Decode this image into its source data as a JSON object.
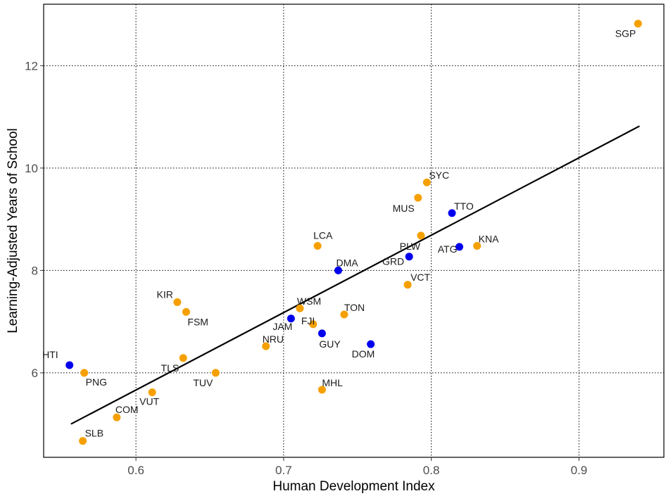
{
  "chart_data": {
    "type": "scatter",
    "xlabel": "Human Development Index",
    "ylabel": "Learning-Adjusted Years of School",
    "xlim": [
      0.5375,
      0.9575
    ],
    "ylim": [
      4.35,
      13.2
    ],
    "x_ticks": [
      0.6,
      0.7,
      0.8,
      0.9
    ],
    "x_tick_labels": [
      "0.6",
      "0.7",
      "0.8",
      "0.9"
    ],
    "y_ticks": [
      6,
      8,
      10,
      12
    ],
    "y_tick_labels": [
      "6",
      "8",
      "10",
      "12"
    ],
    "grid": true,
    "legend": "none",
    "colors": {
      "orange": "#f5a000",
      "blue": "#0000ee",
      "line": "#000000"
    },
    "trend_line": {
      "x": [
        0.556,
        0.941
      ],
      "y": [
        5.0,
        10.82
      ]
    },
    "points": [
      {
        "label": "HTI",
        "x": 0.555,
        "y": 6.15,
        "color": "blue"
      },
      {
        "label": "PNG",
        "x": 0.565,
        "y": 6.0,
        "color": "orange"
      },
      {
        "label": "SLB",
        "x": 0.564,
        "y": 4.67,
        "color": "orange"
      },
      {
        "label": "COM",
        "x": 0.587,
        "y": 5.13,
        "color": "orange"
      },
      {
        "label": "VUT",
        "x": 0.611,
        "y": 5.62,
        "color": "orange"
      },
      {
        "label": "KIR",
        "x": 0.628,
        "y": 7.38,
        "color": "orange"
      },
      {
        "label": "FSM",
        "x": 0.634,
        "y": 7.19,
        "color": "orange"
      },
      {
        "label": "TLS",
        "x": 0.632,
        "y": 6.29,
        "color": "orange"
      },
      {
        "label": "TUV",
        "x": 0.654,
        "y": 6.0,
        "color": "orange"
      },
      {
        "label": "NRU",
        "x": 0.688,
        "y": 6.52,
        "color": "orange"
      },
      {
        "label": "JAM",
        "x": 0.705,
        "y": 7.06,
        "color": "blue"
      },
      {
        "label": "WSM",
        "x": 0.711,
        "y": 7.26,
        "color": "orange"
      },
      {
        "label": "FJI",
        "x": 0.72,
        "y": 6.95,
        "color": "orange"
      },
      {
        "label": "LCA",
        "x": 0.723,
        "y": 8.48,
        "color": "orange"
      },
      {
        "label": "GUY",
        "x": 0.726,
        "y": 6.77,
        "color": "blue"
      },
      {
        "label": "MHL",
        "x": 0.726,
        "y": 5.67,
        "color": "orange"
      },
      {
        "label": "DMA",
        "x": 0.737,
        "y": 8.0,
        "color": "blue"
      },
      {
        "label": "TON",
        "x": 0.741,
        "y": 7.14,
        "color": "orange"
      },
      {
        "label": "DOM",
        "x": 0.759,
        "y": 6.56,
        "color": "blue"
      },
      {
        "label": "VCT",
        "x": 0.784,
        "y": 7.72,
        "color": "orange"
      },
      {
        "label": "GRD",
        "x": 0.785,
        "y": 8.27,
        "color": "blue"
      },
      {
        "label": "MUS",
        "x": 0.791,
        "y": 9.42,
        "color": "orange"
      },
      {
        "label": "PLW",
        "x": 0.793,
        "y": 8.68,
        "color": "orange"
      },
      {
        "label": "SYC",
        "x": 0.797,
        "y": 9.72,
        "color": "orange"
      },
      {
        "label": "TTO",
        "x": 0.814,
        "y": 9.12,
        "color": "blue"
      },
      {
        "label": "ATG",
        "x": 0.819,
        "y": 8.46,
        "color": "blue"
      },
      {
        "label": "KNA",
        "x": 0.831,
        "y": 8.48,
        "color": "orange"
      },
      {
        "label": "SGP",
        "x": 0.94,
        "y": 12.82,
        "color": "orange"
      }
    ]
  }
}
